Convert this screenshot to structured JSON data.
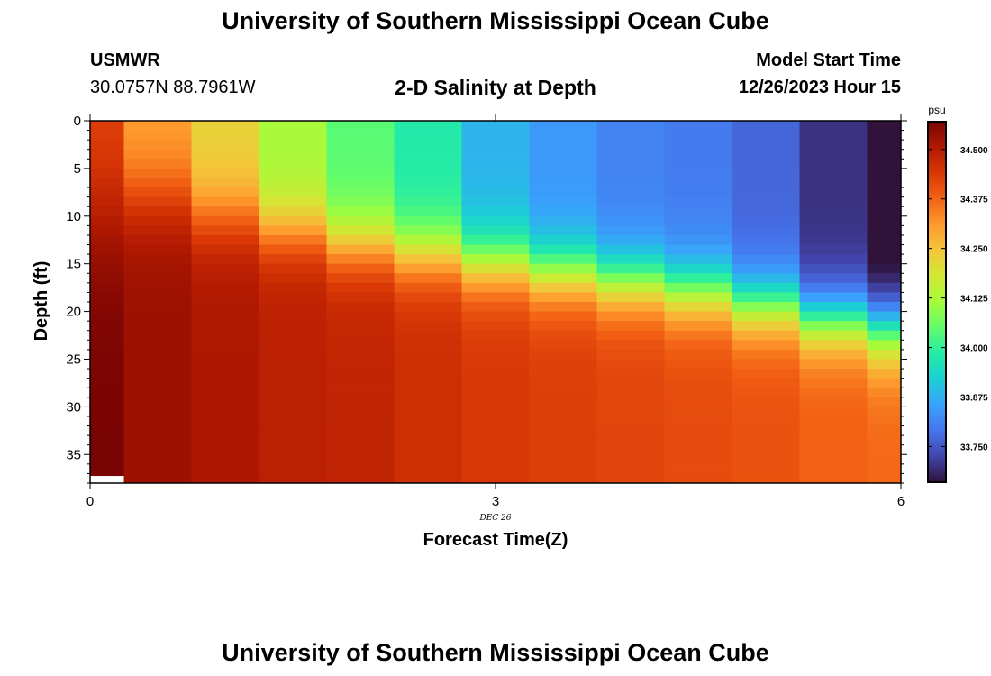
{
  "page": {
    "title_top": "University of Southern Mississippi Ocean Cube",
    "title_bottom": "University of Southern Mississippi Ocean Cube",
    "station": "USMWR",
    "coords": "30.0757N  88.7961W",
    "plot_title": "2-D Salinity at Depth",
    "model_label": "Model Start Time",
    "model_time": "12/26/2023 Hour 15",
    "date_label": "DEC 26"
  },
  "chart_data": {
    "type": "heatmap",
    "title": "2-D Salinity at Depth",
    "xlabel": "Forecast Time(Z)",
    "ylabel": "Depth (ft)",
    "xlim": [
      0,
      6
    ],
    "ylim": [
      0,
      38
    ],
    "x_ticks": [
      0,
      3,
      6
    ],
    "y_ticks": [
      0,
      5,
      10,
      15,
      20,
      25,
      30,
      35
    ],
    "colorbar": {
      "unit": "psu",
      "min": 33.66,
      "max": 34.57,
      "ticks": [
        "33.750",
        "33.875",
        "34.000",
        "34.125",
        "34.250",
        "34.375",
        "34.500"
      ],
      "colormap": [
        "#30123b",
        "#4145ab",
        "#4675ed",
        "#39a2fc",
        "#1bcfd4",
        "#24eca6",
        "#61fc6c",
        "#a4fc3b",
        "#d1e834",
        "#f3c63a",
        "#fe9b2d",
        "#f36315",
        "#d93806",
        "#b11901",
        "#7a0403"
      ]
    },
    "columns": [
      {
        "x0": 0,
        "x1": 0.25,
        "surface": 34.42,
        "deep": 34.57,
        "mid": 10,
        "spread": 8,
        "bottom_depth": 37.2
      },
      {
        "x0": 0.25,
        "x1": 0.75,
        "surface": 34.3,
        "deep": 34.53,
        "mid": 8,
        "spread": 5
      },
      {
        "x0": 0.75,
        "x1": 1.25,
        "surface": 34.22,
        "deep": 34.51,
        "mid": 10,
        "spread": 4.5
      },
      {
        "x0": 1.25,
        "x1": 1.75,
        "surface": 34.12,
        "deep": 34.49,
        "mid": 11.5,
        "spread": 4
      },
      {
        "x0": 1.75,
        "x1": 2.25,
        "surface": 34.04,
        "deep": 34.48,
        "mid": 13,
        "spread": 4
      },
      {
        "x0": 2.25,
        "x1": 2.75,
        "surface": 33.98,
        "deep": 34.46,
        "mid": 14,
        "spread": 4
      },
      {
        "x0": 2.75,
        "x1": 3.25,
        "surface": 33.88,
        "deep": 34.44,
        "mid": 15,
        "spread": 4
      },
      {
        "x0": 3.25,
        "x1": 3.75,
        "surface": 33.84,
        "deep": 34.43,
        "mid": 16,
        "spread": 4
      },
      {
        "x0": 3.75,
        "x1": 4.25,
        "surface": 33.81,
        "deep": 34.42,
        "mid": 17,
        "spread": 4
      },
      {
        "x0": 4.25,
        "x1": 4.75,
        "surface": 33.8,
        "deep": 34.41,
        "mid": 18,
        "spread": 4
      },
      {
        "x0": 4.75,
        "x1": 5.25,
        "surface": 33.77,
        "deep": 34.4,
        "mid": 19.5,
        "spread": 4
      },
      {
        "x0": 5.25,
        "x1": 5.75,
        "surface": 33.7,
        "deep": 34.38,
        "mid": 21,
        "spread": 4
      },
      {
        "x0": 5.75,
        "x1": 6,
        "surface": 33.63,
        "deep": 34.37,
        "mid": 22,
        "spread": 4.5
      }
    ]
  }
}
